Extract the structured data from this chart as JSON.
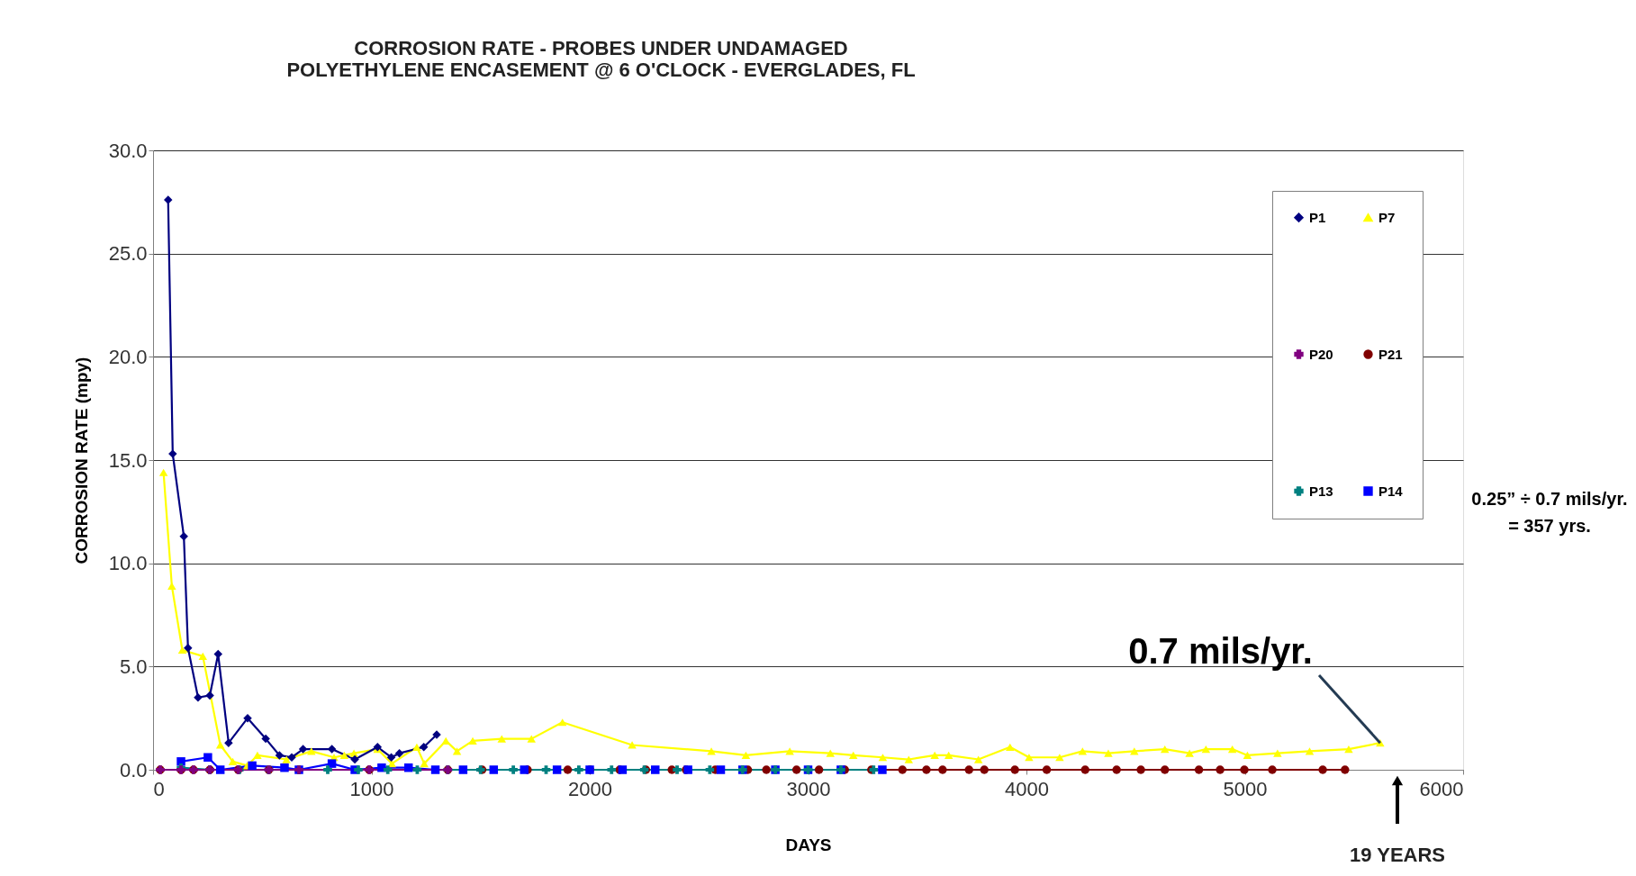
{
  "chart_data": {
    "type": "line",
    "title": "CORROSION RATE - PROBES UNDER UNDAMAGED\nPOLYETHYLENE ENCASEMENT @ 6 O'CLOCK - EVERGLADES, FL",
    "xlabel": "DAYS",
    "ylabel": "CORROSION RATE (mpy)",
    "xlim": [
      0,
      6000
    ],
    "xticks": [
      0,
      1000,
      2000,
      3000,
      4000,
      5000,
      6000
    ],
    "ylim": [
      0,
      30
    ],
    "yticks": [
      {
        "value": 0,
        "label": "0.0"
      },
      {
        "value": 5,
        "label": "5.0"
      },
      {
        "value": 10,
        "label": "10.0"
      },
      {
        "value": 15,
        "label": "15.0"
      },
      {
        "value": 20,
        "label": "20.0"
      },
      {
        "value": 25,
        "label": "25.0"
      },
      {
        "value": 30,
        "label": "30.0"
      }
    ],
    "grid": "y",
    "legend": "top right",
    "series": [
      {
        "name": "P1",
        "color": "#000080",
        "marker": "diamond",
        "x": [
          69,
          90,
          141,
          160,
          206,
          260,
          298,
          346,
          433,
          516,
          579,
          635,
          687,
          819,
          924,
          1028,
          1091,
          1128,
          1240,
          1299
        ],
        "values": [
          27.6,
          15.3,
          11.3,
          5.9,
          3.5,
          3.6,
          5.6,
          1.3,
          2.5,
          1.5,
          0.7,
          0.6,
          1.0,
          1.0,
          0.5,
          1.1,
          0.6,
          0.8,
          1.1,
          1.7
        ]
      },
      {
        "name": "P7",
        "color": "#ffff00",
        "marker": "triangle",
        "x": [
          48,
          86,
          134,
          228,
          308,
          365,
          431,
          478,
          611,
          725,
          829,
          876,
          920,
          1028,
          1094,
          1208,
          1242,
          1341,
          1392,
          1464,
          1597,
          1733,
          1875,
          2194,
          2557,
          2715,
          2916,
          3102,
          3207,
          3342,
          3461,
          3580,
          3644,
          3780,
          3925,
          4012,
          4152,
          4257,
          4375,
          4494,
          4634,
          4747,
          4822,
          4943,
          5012,
          5150,
          5297,
          5476,
          5620
        ],
        "values": [
          14.4,
          8.9,
          5.8,
          5.5,
          1.2,
          0.4,
          0.2,
          0.7,
          0.5,
          0.9,
          0.6,
          0.7,
          0.8,
          1.0,
          0.3,
          1.1,
          0.3,
          1.4,
          0.9,
          1.4,
          1.5,
          1.5,
          2.3,
          1.2,
          0.9,
          0.7,
          0.9,
          0.8,
          0.7,
          0.6,
          0.5,
          0.7,
          0.7,
          0.5,
          1.1,
          0.6,
          0.6,
          0.9,
          0.8,
          0.9,
          1.0,
          0.8,
          1.0,
          1.0,
          0.7,
          0.8,
          0.9,
          1.0,
          1.3
        ]
      },
      {
        "name": "P20",
        "color": "#800080",
        "marker": "cross",
        "x": [
          33,
          128,
          185,
          260,
          390,
          530,
          668,
          990,
          1350
        ],
        "values": [
          0,
          0,
          0,
          0,
          0,
          0,
          0,
          0,
          0
        ]
      },
      {
        "name": "P21",
        "color": "#800000",
        "marker": "circle",
        "x": [
          33,
          128,
          185,
          260,
          390,
          530,
          668,
          990,
          1350,
          1507,
          1715,
          1899,
          2001,
          2137,
          2257,
          2376,
          2441,
          2575,
          2724,
          2809,
          2947,
          3050,
          3168,
          3290,
          3432,
          3542,
          3616,
          3737,
          3807,
          3947,
          4093,
          4269,
          4413,
          4524,
          4634,
          4790,
          4887,
          4998,
          5126,
          5357,
          5459
        ],
        "values": [
          0,
          0,
          0,
          0,
          0,
          0,
          0,
          0,
          0,
          0,
          0,
          0,
          0,
          0,
          0,
          0,
          0,
          0,
          0,
          0,
          0,
          0,
          0,
          0,
          0,
          0,
          0,
          0,
          0,
          0,
          0,
          0,
          0,
          0,
          0,
          0,
          0,
          0,
          0,
          0,
          0
        ]
      },
      {
        "name": "P13",
        "color": "#008080",
        "marker": "cross",
        "x": [
          128,
          260,
          395,
          530,
          668,
          800,
          940,
          1075,
          1210,
          1350,
          1500,
          1650,
          1800,
          1950,
          2100,
          2250,
          2400,
          2550,
          2700,
          2850,
          3000,
          3150,
          3300
        ],
        "values": [
          0.1,
          0,
          0,
          0,
          0,
          0,
          0,
          0,
          0,
          0,
          0,
          0,
          0,
          0,
          0,
          0,
          0,
          0,
          0,
          0,
          0,
          0,
          0
        ]
      },
      {
        "name": "P14",
        "color": "#0000ff",
        "marker": "square",
        "x": [
          128,
          251,
          308,
          454,
          602,
          668,
          819,
          924,
          1047,
          1170,
          1293,
          1420,
          1560,
          1700,
          1850,
          2000,
          2150,
          2300,
          2450,
          2600,
          2700,
          2850,
          3000,
          3150,
          3340
        ],
        "values": [
          0.4,
          0.6,
          0.0,
          0.2,
          0.1,
          0,
          0.3,
          0,
          0.1,
          0.1,
          0,
          0,
          0,
          0,
          0,
          0,
          0,
          0,
          0,
          0,
          0,
          0,
          0,
          0,
          0
        ]
      }
    ],
    "annotations": [
      {
        "text": "0.7 mils/yr.",
        "x": 5620,
        "y": 1.3
      },
      "0.25” ÷ 0.7 mils/yr.\n= 357 yrs.",
      "19 YEARS"
    ]
  }
}
